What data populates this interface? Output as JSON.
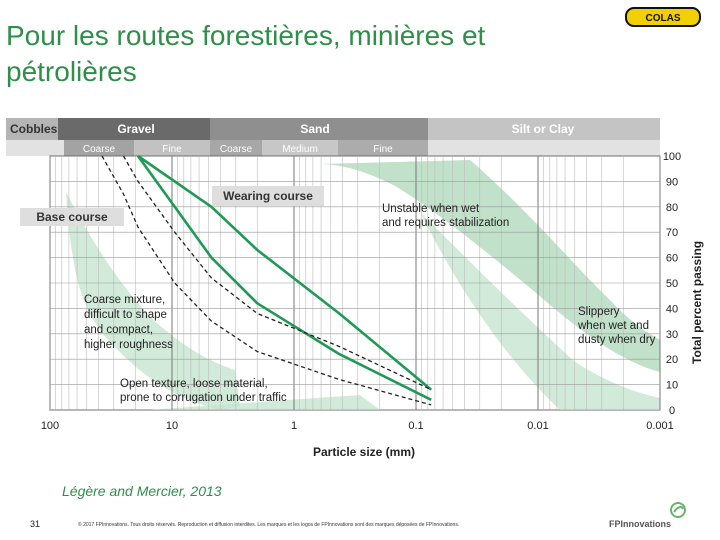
{
  "slide": {
    "title": "Pour les routes forestières, minières et pétrolières",
    "logo_text": "COLAS",
    "citation": "Légère and Mercier, 2013",
    "page_number": "31",
    "legal": "© 2017 FPInnovations. Tous droits réservés. Reproduction et diffusion interdites. Les marques et les logos de FPInnovations sont des marques déposées de FPInnovations.",
    "brand": "FPInnovations"
  },
  "chart_data": {
    "type": "line",
    "x_scale": "log",
    "x_reversed": true,
    "xlim": [
      100,
      0.001
    ],
    "ylim": [
      0,
      100
    ],
    "xlabel": "Particle size (mm)",
    "ylabel": "Total percent passing",
    "x_ticks": [
      "100",
      "10",
      "1",
      "0.1",
      "0.01",
      "0.001"
    ],
    "y_ticks": [
      "100",
      "90",
      "80",
      "70",
      "60",
      "50",
      "40",
      "30",
      "20",
      "10",
      "0"
    ],
    "soil_header": {
      "main": [
        "Cobbles",
        "Gravel",
        "Sand",
        "Silt or Clay"
      ],
      "sub": [
        "Coarse",
        "Fine",
        "Coarse",
        "Medium",
        "Fine"
      ]
    },
    "annotations": {
      "wearing_course": "Wearing course",
      "base_course": "Base course",
      "unstable": "Unstable when wet\nand requires stabilization",
      "coarse_mixture": "Coarse mixture,\ndifficult to shape\nand compact,\nhigher roughness",
      "slippery": "Slippery\nwhen wet and\ndusty when dry",
      "open_texture": "Open texture, loose material,\nprone to corrugation under traffic"
    },
    "series": [
      {
        "style": "solid-green",
        "x": [
          19,
          4.75,
          2,
          0.425,
          0.075
        ],
        "y": [
          100,
          80,
          63,
          38,
          8
        ]
      },
      {
        "style": "solid-green",
        "x": [
          19,
          9.5,
          4.75,
          2,
          0.425,
          0.075
        ],
        "y": [
          100,
          80,
          60,
          42,
          22,
          4
        ]
      },
      {
        "style": "dashed-black",
        "x": [
          25,
          19,
          9.5,
          4.75,
          2,
          0.425,
          0.075
        ],
        "y": [
          100,
          90,
          70,
          52,
          38,
          25,
          8
        ]
      },
      {
        "style": "dashed-black",
        "x": [
          37.5,
          25,
          19,
          9.5,
          4.75,
          2,
          0.425,
          0.075
        ],
        "y": [
          100,
          85,
          72,
          50,
          35,
          23,
          12,
          2
        ]
      }
    ],
    "colors": {
      "title": "#2f8f4a",
      "line": "#1f9a55",
      "band": "#b7dcc1",
      "header": "#8c8c8c"
    }
  }
}
